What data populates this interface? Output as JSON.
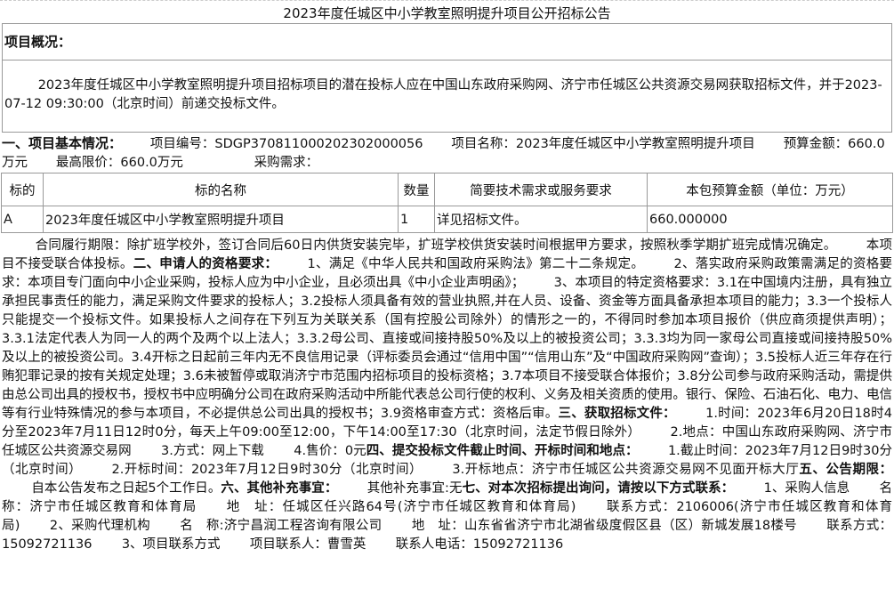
{
  "title": "2023年度任城区中小学教室照明提升项目公开招标公告",
  "overview_header": "项目概况：",
  "overview_text": "2023年度任城区中小学教室照明提升项目招标项目的潜在投标人应在中国山东政府采购网、济宁市任城区公共资源交易网获取招标文件，并于2023-07-12 09:30:00（北京时间）前递交投标文件。",
  "basic": {
    "heading": "一、项目基本情况：",
    "project_no": "项目编号：SDGP370811000202302000056",
    "project_name": "项目名称：2023年度任城区中小学教室照明提升项目",
    "budget": "预算金额：660.0万元",
    "max_price": "最高限价：660.0万元",
    "demand": "采购需求："
  },
  "table": {
    "headers": [
      "标的",
      "标的名称",
      "数量",
      "简要技术需求或服务要求",
      "本包预算金额（单位：万元）"
    ],
    "rows": [
      [
        "A",
        "2023年度任城区中小学教室照明提升项目",
        "1",
        "详见招标文件。",
        "660.000000"
      ]
    ]
  },
  "body_segments": [
    {
      "t": "合同履行期限：除扩班学校外，签订合同后60日内供货安装完毕，扩班学校供货安装时间根据甲方要求，按照秋季学期扩班完成情况确定。",
      "b": false
    },
    {
      "t": "本项目不接受联合体投标。",
      "b": false
    },
    {
      "t": "二、申请人的资格要求：",
      "b": true
    },
    {
      "t": "1、满足《中华人民共和国政府采购法》第二十二条规定。",
      "b": false
    },
    {
      "t": "2、落实政府采购政策需满足的资格要求：本项目专门面向中小企业采购，投标人应为中小企业，且必须出具《中小企业声明函》；",
      "b": false
    },
    {
      "t": "3、本项目的特定资格要求：3.1在中国境内注册，具有独立承担民事责任的能力，满足采购文件要求的投标人；3.2投标人须具备有效的营业执照,并在人员、设备、资金等方面具备承担本项目的能力；3.3一个投标人只能提交一个投标文件。如果投标人之间存在下列互为关联关系（国有控股公司除外）的情形之一的，不得同时参加本项目报价（供应商须提供声明）；3.3.1法定代表人为同一人的两个及两个以上法人；3.3.2母公司、直接或间接持股50%及以上的被投资公司；3.3.3均为同一家母公司直接或间接持股50%及以上的被投资公司。3.4开标之日起前三年内无不良信用记录（评标委员会通过“信用中国”“信用山东”及“中国政府采购网”查询）；3.5投标人近三年存在行贿犯罪记录的按有关规定处理；3.6未被暂停或取消济宁市范围内招标项目的投标资格；3.7本项目不接受联合体报价；3.8分公司参与政府采购活动，需提供由总公司出具的授权书，授权书中应明确分公司在政府采购活动中所能代表总公司行使的权利、义务及相关资质的使用。银行、保险、石油石化、电力、电信等有行业特殊情况的参与本项目，不必提供总公司出具的授权书；3.9资格审查方式：资格后审。",
      "b": false
    },
    {
      "t": "三、获取招标文件：",
      "b": true
    },
    {
      "t": "1.时间：2023年6月20日18时4分至2023年7月11日12时0分，每天上午09:00至12:00，下午14:00至17:30（北京时间，法定节假日除外）",
      "b": false
    },
    {
      "t": "2.地点：中国山东政府采购网、济宁市任城区公共资源交易网",
      "b": false
    },
    {
      "t": "3.方式：网上下载",
      "b": false
    },
    {
      "t": "4.售价：0元",
      "b": false
    },
    {
      "t": "四、提交投标文件截止时间、开标时间和地点：",
      "b": true
    },
    {
      "t": "1.截止时间：2023年7月12日9时30分（北京时间）",
      "b": false
    },
    {
      "t": "2.开标时间：2023年7月12日9时30分（北京时间）",
      "b": false
    },
    {
      "t": "3.开标地点：济宁市任城区公共资源交易网不见面开标大厅",
      "b": false
    },
    {
      "t": "五、公告期限：",
      "b": true
    },
    {
      "t": "自本公告发布之日起5个工作日。",
      "b": false
    },
    {
      "t": "六、其他补充事宜：",
      "b": true
    },
    {
      "t": "其他补充事宜:无",
      "b": false
    },
    {
      "t": "七、对本次招标提出询问，请按以下方式联系：",
      "b": true
    },
    {
      "t": "1、采购人信息",
      "b": false
    },
    {
      "t": "名　称：济宁市任城区教育和体育局",
      "b": false
    },
    {
      "t": "地　址：任城区任兴路64号(济宁市任城区教育和体育局)",
      "b": false
    },
    {
      "t": "联系方式：2106006(济宁市任城区教育和体育局)",
      "b": false
    },
    {
      "t": "2、采购代理机构",
      "b": false
    },
    {
      "t": "名　称:济宁昌润工程咨询有限公司",
      "b": false
    },
    {
      "t": "地　址：山东省省济宁市北湖省级度假区县（区）新城发展18楼号",
      "b": false
    },
    {
      "t": "联系方式：15092721136",
      "b": false
    },
    {
      "t": "3、项目联系方式",
      "b": false
    },
    {
      "t": "项目联系人：曹雪英",
      "b": false
    },
    {
      "t": "联系人电话：15092721136",
      "b": false
    }
  ]
}
